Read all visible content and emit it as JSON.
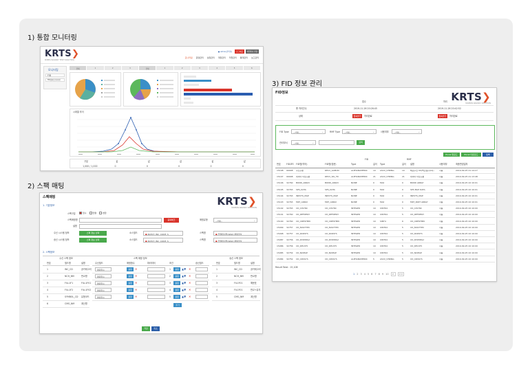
{
  "sections": {
    "monitor_title": "1) 통합 모니터링",
    "spec_title": "2) 스팩 매팅",
    "fid_title": "3) FID 정보 관리"
  },
  "monitor": {
    "logo": "KRTS",
    "logo_sub": "KOREA RAILWAY TECH SOLUTION",
    "top_links": [
      "● admin(관리자)",
      "로그아웃",
      "비밀번호 변경"
    ],
    "menu": [
      "모니터링",
      "운영관리",
      "설정관리",
      "계정관리",
      "작업관리",
      "통계관리",
      "보고관리"
    ],
    "left_menu_title": "모니터링",
    "left_menu_items": [
      "FID",
      "FID상태 모니터링"
    ],
    "tab_labels": [
      "전체",
      "1",
      "2",
      "3",
      "전체",
      "1",
      "2",
      "3",
      "4",
      "5",
      "6"
    ],
    "line_chart_title": "시계열 추이",
    "bottom_headers": [
      "구분",
      "값",
      "값",
      "값",
      "값",
      "값"
    ],
    "bottom_values": [
      "1,000 / 1,000",
      "0",
      "0",
      "0",
      "0",
      "0"
    ]
  },
  "spec": {
    "title": "스펙매핑",
    "logo": "KRTS",
    "logo_sub": "KOREAN RAILWAY SOLUTION",
    "section1": "1. 기본정보",
    "section2": "2. 스펙정보",
    "labels": {
      "type": "스펙구분",
      "spec_name": "스펙매핑명",
      "desc": "설명",
      "src_system": "수신 시스템 정보",
      "tgt_system": "송신 시스템 정보",
      "src_field": "소스필드",
      "tgt_field": "소스필드",
      "mapping": "매핑유형",
      "src_table": "스펙명",
      "tgt_table": "스펙명"
    },
    "radio_options": [
      "입수",
      "연결",
      "변환"
    ],
    "dup_button": "중복체크",
    "select_placeholder": "--선택--",
    "system_button": "스펙 정보 선택",
    "field_value": "BATCH_INC_CODE_S",
    "table_value": "연결테이블(RAW) 매핑정보",
    "left_table_title": "수신 스펙 정보",
    "mid_table_title": "스펙 매핑 정보",
    "right_table_title": "송신 스펙 정보",
    "left_headers": [
      "번호",
      "필드명",
      "설명"
    ],
    "mid_headers": [
      "수신필드",
      "매핑함수",
      "파라미터",
      "조건",
      "송신필드"
    ],
    "right_headers": [
      "번호",
      "필드명",
      "설명"
    ],
    "left_rows": [
      [
        "1",
        "INC_CD",
        "공카테고리"
      ],
      [
        "2",
        "NCH_NM",
        "판교명"
      ],
      [
        "3",
        "FILL1F1",
        "FILL1F01"
      ],
      [
        "4",
        "FILL1F2",
        "FILL1F02"
      ],
      [
        "5",
        "SYMBOL_CD",
        "유형코드"
      ],
      [
        "6",
        "CMG_NM",
        "계산명"
      ]
    ],
    "mid_func": "매핑함수",
    "mid_btn": "설정",
    "mid_rows": [
      "1",
      "2",
      "3",
      "4",
      "5"
    ],
    "right_rows": [
      [
        "1",
        "INC_CD",
        "공카테고리"
      ],
      [
        "2",
        "NCH_NM",
        "판교명"
      ],
      [
        "3",
        "FIL1F01",
        "예문표"
      ],
      [
        "4",
        "FIL1F01",
        "판교+유지"
      ],
      [
        "5",
        "CMG_NM",
        "계산명"
      ]
    ],
    "add_button": "추가",
    "save_button": "저장",
    "cancel_button": "취소"
  },
  "fid": {
    "title": "FID정보",
    "logo": "KRTS",
    "logo_sub": "KOREAN RAILWAY SOLUTION",
    "info_headers": [
      "접수",
      "처리"
    ],
    "info_rows": [
      [
        "총 처리건수",
        "2019-11-26 20:26:45",
        "2019-11-26 20:42:52"
      ],
      [
        "상태",
        "접속불가",
        "처리완료",
        "접속불가",
        "처리완료"
      ]
    ],
    "filters": {
      "fid_type": "FID Type",
      "rmf_type": "RMF Type",
      "use_yn": "사용여부",
      "dept": "관리부서",
      "select": "--선택--",
      "search": "검색"
    },
    "excel_buttons": [
      "Excel 업로드",
      "Excel 다운로드",
      "등록"
    ],
    "col_groups": [
      "FID",
      "RMF"
    ],
    "headers": [
      "번호",
      "FID코드",
      "FID명(약어)",
      "FID명(영문)",
      "Type",
      "길이",
      "Type",
      "길이",
      "설명",
      "사용여부",
      "최종변경일자"
    ],
    "rows": [
      [
        "15108",
        "99908",
        "수신구분",
        "RECV_GUBUN",
        "ALPHANUMERIC",
        "10",
        "ASCII_STRING",
        "10",
        "체로수신 00(백오일)/주야~",
        "사용",
        "2019-09-25 21:14:27"
      ],
      [
        "15107",
        "99908",
        "데이터 타입구분",
        "RECV_SIS_TR",
        "ALPHANUMERIC",
        "21",
        "ASCII_STRING",
        "21",
        "데이터 타입구분",
        "사용",
        "2019-09-25 21:13:48"
      ],
      [
        "15106",
        "32760",
        "BOND_ARRAY",
        "BOND_ARRAY",
        "NONE",
        "0",
        "MAP",
        "0",
        "BOND ARRAY",
        "사용",
        "2019-09-25 22:10:01"
      ],
      [
        "15105",
        "32763",
        "SPS_DATA",
        "SPS_DATA",
        "NONE",
        "0",
        "MAP",
        "0",
        "SPS MAP DATA",
        "사용",
        "2019-09-25 22:10:01"
      ],
      [
        "15104",
        "32763",
        "INPUTS_MAP",
        "INPUTS_MAP",
        "NONE",
        "0",
        "MAP",
        "0",
        "INPUTS_MAP",
        "사용",
        "2019-09-25 22:10:01"
      ],
      [
        "15103",
        "32763",
        "MKT_ARRAY",
        "MKT_ARRAY",
        "NONE",
        "0",
        "MAP",
        "0",
        "MKT_PART ARRAY",
        "사용",
        "2019-09-25 22:10:01"
      ],
      [
        "15102",
        "32763",
        "CD_CISYNC",
        "CD_CISYNC",
        "INTEGER",
        "10",
        "UINT64",
        "5",
        "CD_CISYNC",
        "사용",
        "2019-09-25 22:10:00"
      ],
      [
        "15101",
        "32760",
        "CD_REFRESH",
        "CD_REFRESH",
        "INTEGER",
        "10",
        "UINT64",
        "5",
        "CD_REFRESH",
        "사용",
        "2019-09-25 22:10:00"
      ],
      [
        "15100",
        "32760",
        "CD_CRESTMIN",
        "CD_CRESTMIN",
        "INTEGER",
        "10",
        "SINT4",
        "6",
        "CD_CRESTMIN",
        "사용",
        "2019-09-25 22:10:00"
      ],
      [
        "15099",
        "32757",
        "CD_MASTTIM",
        "CD_MASTTIM",
        "INTEGER",
        "10",
        "UINT64",
        "5",
        "CD_MASTTIM",
        "사용",
        "2019-09-25 22:10:00"
      ],
      [
        "15098",
        "32757",
        "CD_RCRSTS",
        "CD_RCRSTS",
        "INTEGER",
        "10",
        "UINT64",
        "5",
        "CD_RCRSTS",
        "사용",
        "2019-09-25 22:10:00"
      ],
      [
        "15087",
        "32756",
        "CD_DISMISSA",
        "CD_DISMISSA",
        "INTEGER",
        "10",
        "UINT64",
        "5",
        "CD_DISMISSA",
        "사용",
        "2019-09-25 22:10:00"
      ],
      [
        "15086",
        "32756",
        "CD_DELSTS",
        "CD_DELSTS",
        "INTEGER",
        "10",
        "UINT64",
        "5",
        "CD_DELSTS",
        "사용",
        "2019-09-25 22:10:00"
      ],
      [
        "15085",
        "32754",
        "CD_NOMAP",
        "CD_NOMAP",
        "INTEGER",
        "10",
        "UINT64",
        "5",
        "CD_NOMAP",
        "사용",
        "2019-09-25 22:10:00"
      ],
      [
        "15084",
        "32752",
        "CD_CRSSYS",
        "CD_CRSSYS",
        "ALPHANUMERIC",
        "5",
        "ASCII_STRING",
        "5",
        "CD_CRSSYS",
        "사용",
        "2019-09-25 22:10:00"
      ]
    ],
    "result_total": "Result Total : 15,108",
    "pages": [
      "1",
      "2",
      "3",
      "4",
      "5",
      "6",
      "7",
      "8",
      "9",
      "10"
    ],
    "page_next": ">",
    "page_last": ">>"
  }
}
